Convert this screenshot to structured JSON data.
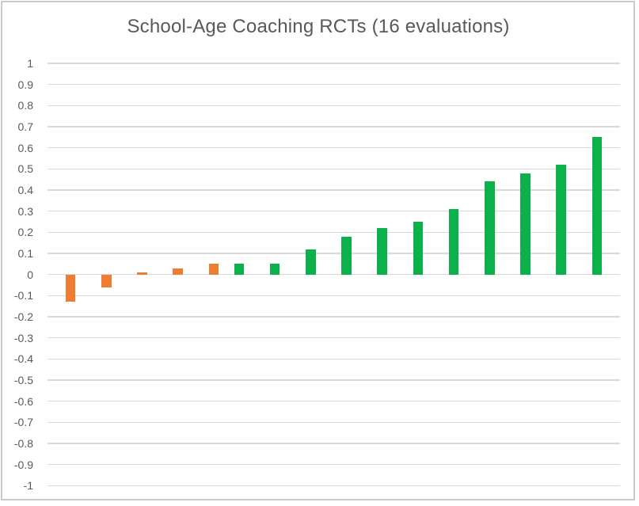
{
  "window": {
    "background": "#ffffff",
    "frame_border_color": "#c9c9c9"
  },
  "chart_data": {
    "type": "bar",
    "title": "School-Age Coaching RCTs (16 evaluations)",
    "title_color": "#595959",
    "bars": [
      {
        "value": -0.13,
        "color_key": "orange"
      },
      {
        "value": -0.06,
        "color_key": "orange"
      },
      {
        "value": 0.01,
        "color_key": "orange"
      },
      {
        "value": 0.03,
        "color_key": "orange"
      },
      {
        "value": 0.05,
        "color_key": "orange"
      },
      {
        "value": 0.05,
        "color_key": "green"
      },
      {
        "value": 0.05,
        "color_key": "green"
      },
      {
        "value": 0.12,
        "color_key": "green"
      },
      {
        "value": 0.18,
        "color_key": "green"
      },
      {
        "value": 0.22,
        "color_key": "green"
      },
      {
        "value": 0.25,
        "color_key": "green"
      },
      {
        "value": 0.31,
        "color_key": "green"
      },
      {
        "value": 0.44,
        "color_key": "green"
      },
      {
        "value": 0.48,
        "color_key": "green"
      },
      {
        "value": 0.52,
        "color_key": "green"
      },
      {
        "value": 0.65,
        "color_key": "green"
      }
    ],
    "colors": {
      "orange": "#ED7D31",
      "green": "#0DB14B"
    },
    "yaxis": {
      "min": -1,
      "max": 1,
      "step": 0.1,
      "tick_labels": [
        "1",
        "0.9",
        "0.8",
        "0.7",
        "0.6",
        "0.5",
        "0.4",
        "0.3",
        "0.2",
        "0.1",
        "0",
        "-0.1",
        "-0.2",
        "-0.3",
        "-0.4",
        "-0.5",
        "-0.6",
        "-0.7",
        "-0.8",
        "-0.9",
        "-1"
      ],
      "label_color": "#595959"
    },
    "gridline_color": "#D9D9D9",
    "grid": true,
    "legend": false,
    "xaxis": {
      "labels_visible": false
    }
  }
}
